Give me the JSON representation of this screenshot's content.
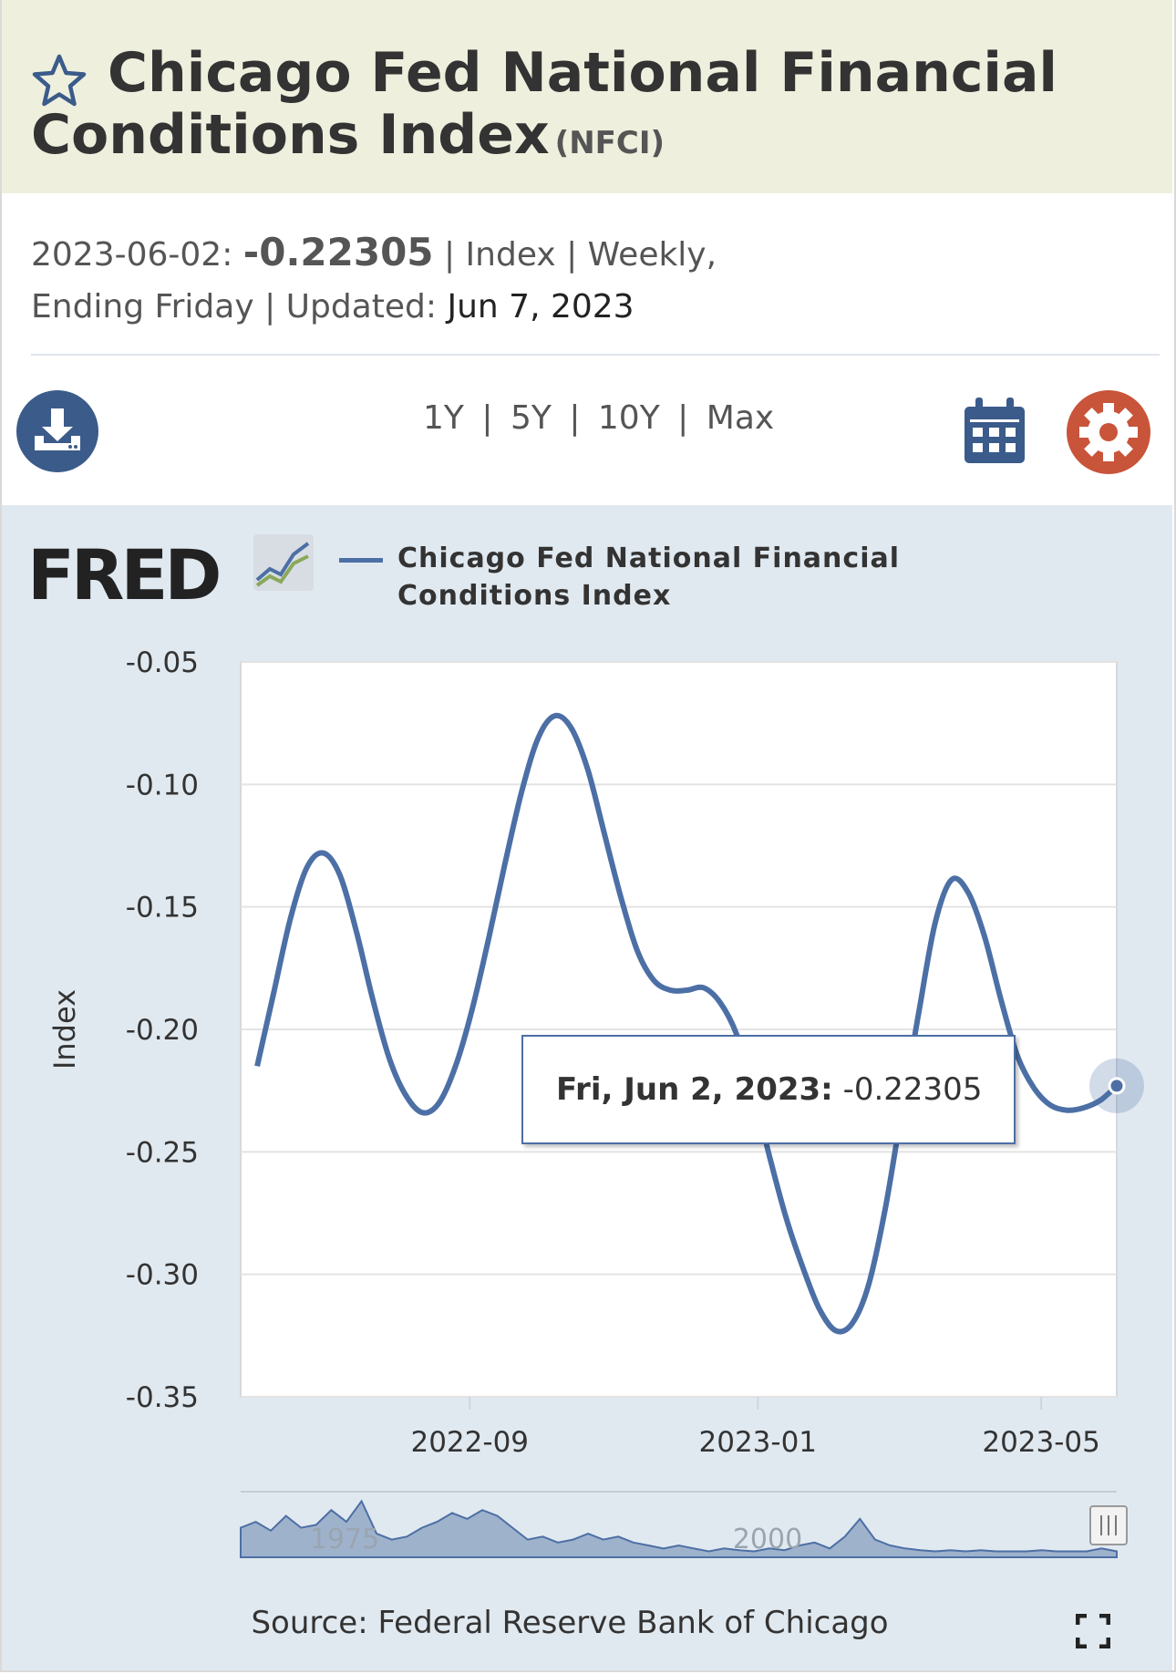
{
  "header": {
    "title_line1": "Chicago Fed National Financial",
    "title_line2": "Conditions Index",
    "series_id": "(NFCI)",
    "observation_date": "2023-06-02:",
    "observation_value": "-0.22305",
    "units_line1": "| Index | Weekly,",
    "units_line2": "Ending Friday | Updated:",
    "updated_date": "Jun 7, 2023"
  },
  "toolbar": {
    "ranges": [
      "1Y",
      "5Y",
      "10Y",
      "Max"
    ],
    "separator": "|",
    "download_icon": "download-icon",
    "calendar_icon": "calendar-icon",
    "settings_icon": "gear-icon"
  },
  "legend": {
    "logo_text": "FRED",
    "series_line1": "Chicago Fed National Financial",
    "series_line2": "Conditions Index"
  },
  "tooltip": {
    "date": "Fri, Jun 2, 2023:",
    "value": "-0.22305"
  },
  "navigator": {
    "labels": [
      "1975",
      "2000"
    ]
  },
  "source": "Source: Federal Reserve Bank of Chicago",
  "colors": {
    "series": "#4c6fa5",
    "panel_bg": "#e1e9f0",
    "title_bg": "#efefde",
    "download_btn": "#3b5b8a",
    "settings_btn": "#c8543a"
  },
  "chart_data": {
    "type": "line",
    "ylabel": "Index",
    "ylim": [
      -0.35,
      -0.05
    ],
    "yticks": [
      "-0.05",
      "-0.10",
      "-0.15",
      "-0.20",
      "-0.25",
      "-0.30",
      "-0.35"
    ],
    "xticks": [
      "2022-09",
      "2023-01",
      "2023-05"
    ],
    "grid": true,
    "x": [
      "2022-06-03",
      "2022-06-10",
      "2022-06-17",
      "2022-06-24",
      "2022-07-01",
      "2022-07-08",
      "2022-07-15",
      "2022-07-22",
      "2022-07-29",
      "2022-08-05",
      "2022-08-12",
      "2022-08-19",
      "2022-08-26",
      "2022-09-02",
      "2022-09-09",
      "2022-09-16",
      "2022-09-23",
      "2022-09-30",
      "2022-10-07",
      "2022-10-14",
      "2022-10-21",
      "2022-10-28",
      "2022-11-04",
      "2022-11-11",
      "2022-11-18",
      "2022-11-25",
      "2022-12-02",
      "2022-12-09",
      "2022-12-16",
      "2022-12-23",
      "2022-12-30",
      "2023-01-06",
      "2023-01-13",
      "2023-01-20",
      "2023-01-27",
      "2023-02-03",
      "2023-02-10",
      "2023-02-17",
      "2023-02-24",
      "2023-03-03",
      "2023-03-10",
      "2023-03-17",
      "2023-03-24",
      "2023-03-31",
      "2023-04-07",
      "2023-04-14",
      "2023-04-21",
      "2023-04-28",
      "2023-05-05",
      "2023-05-12",
      "2023-05-19",
      "2023-05-26",
      "2023-06-02"
    ],
    "series": [
      {
        "values": [
          -0.215,
          -0.185,
          -0.155,
          -0.134,
          -0.128,
          -0.137,
          -0.16,
          -0.188,
          -0.212,
          -0.227,
          -0.234,
          -0.23,
          -0.215,
          -0.192,
          -0.163,
          -0.132,
          -0.103,
          -0.081,
          -0.072,
          -0.077,
          -0.094,
          -0.12,
          -0.146,
          -0.168,
          -0.18,
          -0.184,
          -0.184,
          -0.183,
          -0.189,
          -0.202,
          -0.225,
          -0.252,
          -0.277,
          -0.297,
          -0.314,
          -0.323,
          -0.32,
          -0.304,
          -0.273,
          -0.233,
          -0.194,
          -0.157,
          -0.139,
          -0.144,
          -0.162,
          -0.188,
          -0.211,
          -0.224,
          -0.231,
          -0.233,
          -0.232,
          -0.229,
          -0.22305
        ]
      }
    ]
  }
}
